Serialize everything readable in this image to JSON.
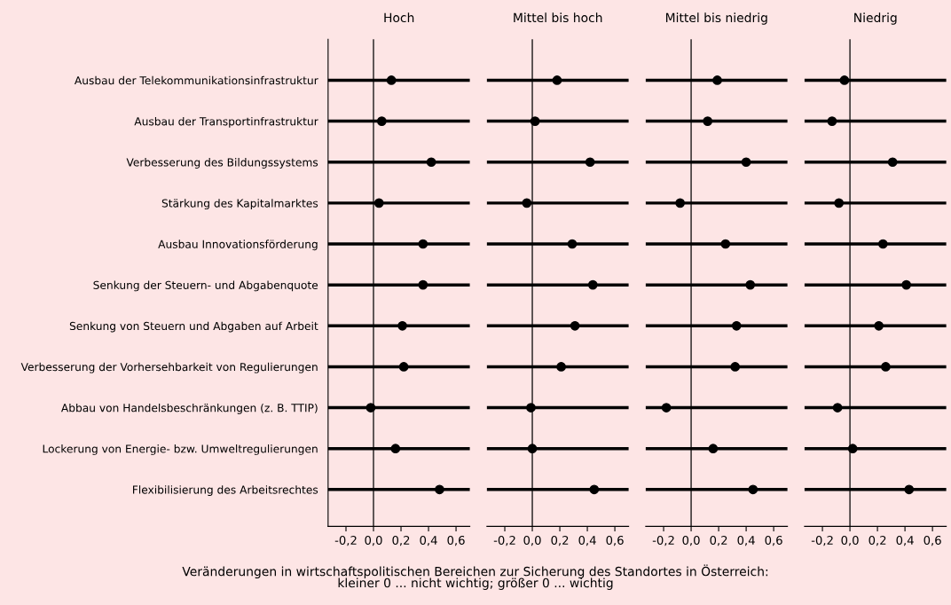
{
  "chart_data": [
    {
      "type": "scatter",
      "title": "Hoch",
      "categories": [
        "Ausbau der Telekommunikationsinfrastruktur",
        "Ausbau der Transportinfrastruktur",
        "Verbesserung des Bildungssystems",
        "Stärkung des Kapitalmarktes",
        "Ausbau Innovationsförderung",
        "Senkung der Steuern- und Abgabenquote",
        "Senkung von Steuern und Abgaben auf Arbeit",
        "Verbesserung der Vorhersehbarkeit von Regulierungen",
        "Abbau von Handelsbeschränkungen (z. B. TTIP)",
        "Lockerung von Energie- bzw. Umweltregulierungen",
        "Flexibilisierung des Arbeitsrechtes"
      ],
      "orientation": "horizontal",
      "values": [
        0.13,
        0.06,
        0.42,
        0.04,
        0.36,
        0.36,
        0.21,
        0.22,
        -0.02,
        0.16,
        0.48
      ],
      "color": "#000000",
      "marker": "circle",
      "xlim": [
        -0.33,
        0.7
      ],
      "xticks": [
        {
          "value": -0.2,
          "label": "-0,2"
        },
        {
          "value": 0.0,
          "label": "0,0"
        },
        {
          "value": 0.2,
          "label": "0,2"
        },
        {
          "value": 0.4,
          "label": "0,4"
        },
        {
          "value": 0.6,
          "label": "0,6"
        }
      ],
      "grid": "y",
      "ref_lines": [
        {
          "axis": "x",
          "value": 0
        }
      ],
      "annotations": [
        "Veränderungen in wirtschaftspolitischen Bereichen zur Sicherung des Standortes in Österreich:\nkleiner 0 ... nicht wichtig; größer 0 ... wichtig"
      ]
    },
    {
      "type": "scatter",
      "title": "Mittel bis hoch",
      "categories": [
        null,
        null,
        null,
        null,
        null,
        null,
        null,
        null,
        null,
        null,
        null
      ],
      "orientation": "horizontal",
      "values": [
        0.18,
        0.02,
        0.42,
        -0.04,
        0.29,
        0.44,
        0.31,
        0.21,
        -0.01,
        0.0,
        0.45
      ],
      "color": "#000000",
      "marker": "circle",
      "xlim": [
        -0.33,
        0.7
      ],
      "xticks": [
        {
          "value": -0.2,
          "label": "-0,2"
        },
        {
          "value": 0.0,
          "label": "0,0"
        },
        {
          "value": 0.2,
          "label": "0,2"
        },
        {
          "value": 0.4,
          "label": "0,4"
        },
        {
          "value": 0.6,
          "label": "0,6"
        }
      ],
      "grid": "y",
      "ref_lines": [
        {
          "axis": "x",
          "value": 0
        }
      ],
      "tick_labels": "x"
    },
    {
      "type": "scatter",
      "title": "Mittel bis niedrig",
      "categories": [
        null,
        null,
        null,
        null,
        null,
        null,
        null,
        null,
        null,
        null,
        null
      ],
      "orientation": "horizontal",
      "values": [
        0.19,
        0.12,
        0.4,
        -0.08,
        0.25,
        0.43,
        0.33,
        0.32,
        -0.18,
        0.16,
        0.45
      ],
      "color": "#000000",
      "marker": "circle",
      "xlim": [
        -0.33,
        0.7
      ],
      "xticks": [
        {
          "value": -0.2,
          "label": "-0,2"
        },
        {
          "value": 0.0,
          "label": "0,0"
        },
        {
          "value": 0.2,
          "label": "0,2"
        },
        {
          "value": 0.4,
          "label": "0,4"
        },
        {
          "value": 0.6,
          "label": "0,6"
        }
      ],
      "grid": "y",
      "ref_lines": [
        {
          "axis": "x",
          "value": 0
        }
      ],
      "tick_labels": "x"
    },
    {
      "type": "scatter",
      "title": "Niedrig",
      "categories": [
        null,
        null,
        null,
        null,
        null,
        null,
        null,
        null,
        null,
        null,
        null
      ],
      "orientation": "horizontal",
      "values": [
        -0.04,
        -0.13,
        0.31,
        -0.08,
        0.24,
        0.41,
        0.21,
        0.26,
        -0.09,
        0.02,
        0.43
      ],
      "color": "#000000",
      "marker": "circle",
      "xlim": [
        -0.33,
        0.7
      ],
      "xticks": [
        {
          "value": -0.2,
          "label": "-0,2"
        },
        {
          "value": 0.0,
          "label": "0,0"
        },
        {
          "value": 0.2,
          "label": "0,2"
        },
        {
          "value": 0.4,
          "label": "0,4"
        },
        {
          "value": 0.6,
          "label": "0,6"
        }
      ],
      "grid": "y",
      "ref_lines": [
        {
          "axis": "x",
          "value": 0
        }
      ],
      "tick_labels": "x"
    }
  ]
}
